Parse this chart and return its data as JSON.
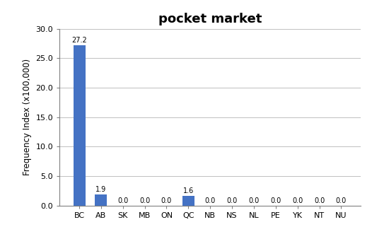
{
  "title": "pocket market",
  "categories": [
    "BC",
    "AB",
    "SK",
    "MB",
    "ON",
    "QC",
    "NB",
    "NS",
    "NL",
    "PE",
    "YK",
    "NT",
    "NU"
  ],
  "values": [
    27.2,
    1.9,
    0.0,
    0.0,
    0.0,
    1.6,
    0.0,
    0.0,
    0.0,
    0.0,
    0.0,
    0.0,
    0.0
  ],
  "bar_color": "#4472C4",
  "ylabel": "Frequency Index (x100,000)",
  "ylim": [
    0,
    30.0
  ],
  "yticks": [
    0.0,
    5.0,
    10.0,
    15.0,
    20.0,
    25.0,
    30.0
  ],
  "title_fontsize": 13,
  "label_fontsize": 8.5,
  "tick_fontsize": 8,
  "bar_label_fontsize": 7,
  "background_color": "#ffffff",
  "grid_color": "#c0c0c0",
  "spine_color": "#808080"
}
